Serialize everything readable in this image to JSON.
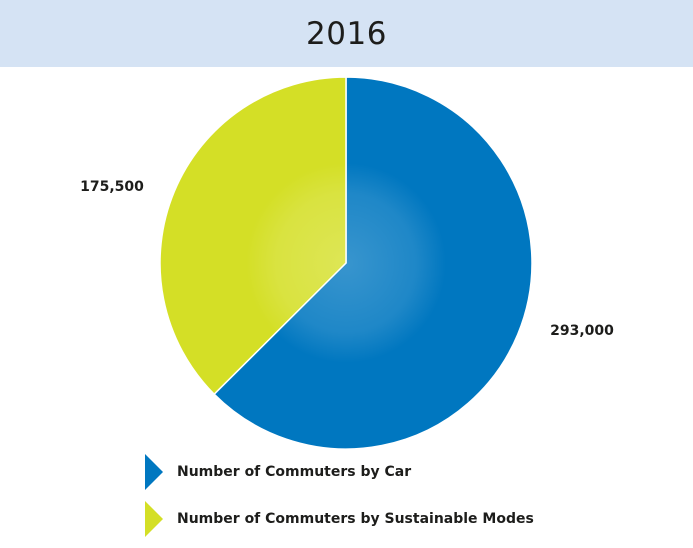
{
  "header": {
    "title": "2016"
  },
  "chart_data": {
    "type": "pie",
    "title": "2016",
    "categories": [
      "Number of Commuters by Car",
      "Number of Commuters by Sustainable Modes"
    ],
    "values": [
      293000,
      175500
    ],
    "value_labels": [
      "293,000",
      "175,500"
    ],
    "colors": [
      "#0077c0",
      "#d4df26"
    ],
    "legend_position": "bottom"
  }
}
